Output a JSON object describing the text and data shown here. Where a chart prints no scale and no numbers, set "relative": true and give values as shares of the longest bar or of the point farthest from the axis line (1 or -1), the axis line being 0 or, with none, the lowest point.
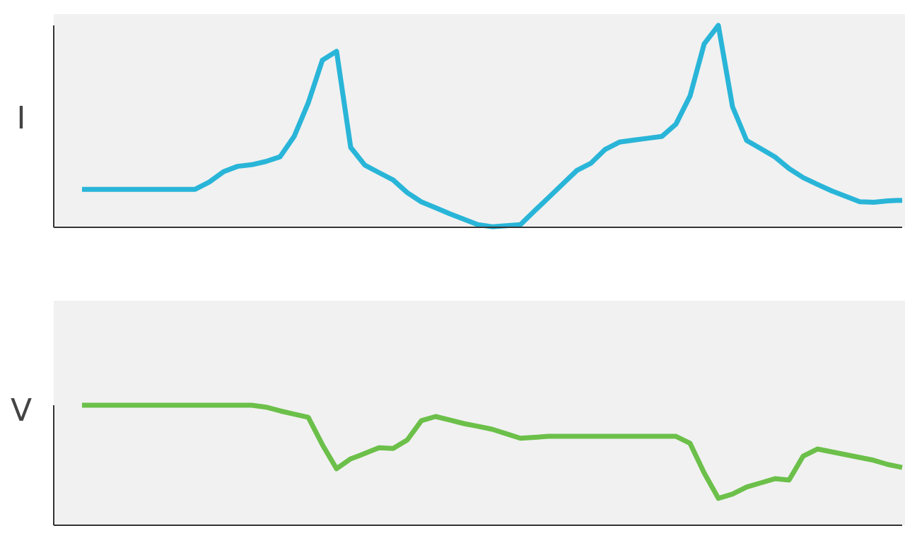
{
  "chart_data": [
    {
      "type": "line",
      "ylabel": "I",
      "relative": true,
      "legend": false,
      "marker": "none",
      "line_style": "solid",
      "categories": [
        null,
        null,
        null,
        null,
        null,
        null,
        null,
        null,
        null,
        null,
        null,
        null,
        null,
        null,
        null,
        null,
        null,
        null,
        null,
        null,
        null,
        null,
        null,
        null,
        null,
        null,
        null,
        null,
        null,
        null,
        null,
        null,
        null,
        null,
        null,
        null,
        null,
        null,
        null,
        null,
        null,
        null,
        null,
        null,
        null,
        null,
        null,
        null,
        null,
        null,
        null,
        null,
        null,
        null,
        null,
        null,
        null,
        null,
        null
      ],
      "series": [
        {
          "color": "#29b5d8",
          "values": [
            0.188,
            0.188,
            0.188,
            0.188,
            0.188,
            0.188,
            0.188,
            0.188,
            0.188,
            0.224,
            0.275,
            0.302,
            0.31,
            0.326,
            0.349,
            0.45,
            0.617,
            0.828,
            0.872,
            0.396,
            0.308,
            0.271,
            0.235,
            0.172,
            0.126,
            0.097,
            0.067,
            0.04,
            0.013,
            0.003,
            0.008,
            0.013,
            0.081,
            0.148,
            0.215,
            0.282,
            0.318,
            0.386,
            0.422,
            0.432,
            0.441,
            0.45,
            0.511,
            0.651,
            0.909,
            1,
            0.598,
            0.43,
            0.39,
            0.349,
            0.291,
            0.246,
            0.213,
            0.181,
            0.154,
            0.127,
            0.124,
            0.131,
            0.134
          ]
        }
      ]
    },
    {
      "type": "line",
      "ylabel": "V",
      "relative": true,
      "legend": false,
      "marker": "none",
      "line_style": "solid",
      "categories": [
        null,
        null,
        null,
        null,
        null,
        null,
        null,
        null,
        null,
        null,
        null,
        null,
        null,
        null,
        null,
        null,
        null,
        null,
        null,
        null,
        null,
        null,
        null,
        null,
        null,
        null,
        null,
        null,
        null,
        null,
        null,
        null,
        null,
        null,
        null,
        null,
        null,
        null,
        null,
        null,
        null,
        null,
        null,
        null,
        null,
        null,
        null,
        null,
        null,
        null,
        null,
        null,
        null,
        null,
        null,
        null,
        null,
        null,
        null
      ],
      "series": [
        {
          "color": "#6cc04a",
          "values": [
            1,
            1,
            1,
            1,
            1,
            1,
            1,
            1,
            1,
            1,
            1,
            1,
            1,
            0.984,
            0.953,
            0.926,
            0.899,
            0.671,
            0.471,
            0.553,
            0.598,
            0.646,
            0.64,
            0.71,
            0.871,
            0.906,
            0.877,
            0.847,
            0.824,
            0.8,
            0.763,
            0.725,
            0.732,
            0.741,
            0.741,
            0.741,
            0.741,
            0.741,
            0.741,
            0.741,
            0.741,
            0.741,
            0.741,
            0.683,
            0.435,
            0.224,
            0.259,
            0.318,
            0.353,
            0.388,
            0.376,
            0.576,
            0.635,
            0.612,
            0.588,
            0.565,
            0.541,
            0.506,
            0.482
          ]
        }
      ]
    }
  ]
}
